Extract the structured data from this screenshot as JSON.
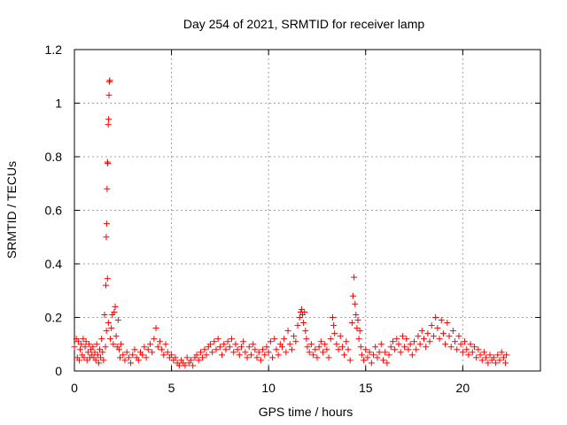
{
  "chart_data": {
    "type": "scatter",
    "title": "Day 254 of 2021, SRMTID for receiver lamp",
    "xlabel": "GPS time / hours",
    "ylabel": "SRMTID / TECUs",
    "xlim": [
      0,
      24
    ],
    "ylim": [
      0,
      1.2
    ],
    "xticks": [
      0,
      5,
      10,
      15,
      20
    ],
    "xtick_labels": [
      "0",
      "5",
      "10",
      "15",
      "20"
    ],
    "yticks": [
      0,
      0.2,
      0.4,
      0.6,
      0.8,
      1.0,
      1.2
    ],
    "ytick_labels": [
      "0",
      "0.2",
      "0.4",
      "0.6",
      "0.8",
      "1",
      "1.2"
    ],
    "grid": true,
    "marker": "+",
    "color": "#ff0000",
    "series": [
      {
        "name": "SRMTID",
        "points": [
          [
            0.0,
            0.09
          ],
          [
            0.1,
            0.12
          ],
          [
            0.15,
            0.05
          ],
          [
            0.2,
            0.11
          ],
          [
            0.25,
            0.04
          ],
          [
            0.3,
            0.08
          ],
          [
            0.35,
            0.1
          ],
          [
            0.4,
            0.06
          ],
          [
            0.45,
            0.12
          ],
          [
            0.5,
            0.05
          ],
          [
            0.55,
            0.09
          ],
          [
            0.6,
            0.11
          ],
          [
            0.65,
            0.04
          ],
          [
            0.7,
            0.07
          ],
          [
            0.75,
            0.1
          ],
          [
            0.8,
            0.05
          ],
          [
            0.85,
            0.08
          ],
          [
            0.9,
            0.06
          ],
          [
            0.95,
            0.09
          ],
          [
            1.0,
            0.05
          ],
          [
            1.05,
            0.07
          ],
          [
            1.1,
            0.04
          ],
          [
            1.15,
            0.1
          ],
          [
            1.2,
            0.06
          ],
          [
            1.25,
            0.03
          ],
          [
            1.3,
            0.08
          ],
          [
            1.35,
            0.05
          ],
          [
            1.4,
            0.12
          ],
          [
            1.45,
            0.07
          ],
          [
            1.5,
            0.04
          ],
          [
            1.55,
            0.21
          ],
          [
            1.6,
            0.09
          ],
          [
            1.62,
            0.32
          ],
          [
            1.64,
            0.5
          ],
          [
            1.66,
            0.55
          ],
          [
            1.68,
            0.68
          ],
          [
            1.7,
            0.78
          ],
          [
            1.72,
            0.775
          ],
          [
            1.74,
            0.92
          ],
          [
            1.76,
            0.94
          ],
          [
            1.78,
            1.03
          ],
          [
            1.8,
            1.08
          ],
          [
            1.82,
            1.085
          ],
          [
            1.7,
            0.345
          ],
          [
            1.65,
            0.15
          ],
          [
            1.75,
            0.18
          ],
          [
            1.85,
            0.12
          ],
          [
            1.9,
            0.16
          ],
          [
            1.95,
            0.21
          ],
          [
            2.0,
            0.1
          ],
          [
            2.05,
            0.22
          ],
          [
            2.1,
            0.24
          ],
          [
            2.15,
            0.13
          ],
          [
            2.2,
            0.09
          ],
          [
            2.25,
            0.19
          ],
          [
            2.3,
            0.08
          ],
          [
            2.35,
            0.05
          ],
          [
            2.4,
            0.1
          ],
          [
            2.5,
            0.06
          ],
          [
            2.6,
            0.04
          ],
          [
            2.7,
            0.07
          ],
          [
            2.8,
            0.05
          ],
          [
            2.9,
            0.03
          ],
          [
            3.0,
            0.06
          ],
          [
            3.1,
            0.08
          ],
          [
            3.2,
            0.05
          ],
          [
            3.3,
            0.04
          ],
          [
            3.4,
            0.07
          ],
          [
            3.5,
            0.06
          ],
          [
            3.6,
            0.09
          ],
          [
            3.7,
            0.05
          ],
          [
            3.8,
            0.08
          ],
          [
            3.9,
            0.1
          ],
          [
            4.0,
            0.07
          ],
          [
            4.1,
            0.12
          ],
          [
            4.2,
            0.16
          ],
          [
            4.3,
            0.09
          ],
          [
            4.4,
            0.11
          ],
          [
            4.5,
            0.08
          ],
          [
            4.6,
            0.06
          ],
          [
            4.7,
            0.1
          ],
          [
            4.8,
            0.07
          ],
          [
            4.9,
            0.05
          ],
          [
            5.0,
            0.06
          ],
          [
            5.1,
            0.04
          ],
          [
            5.2,
            0.05
          ],
          [
            5.3,
            0.03
          ],
          [
            5.4,
            0.02
          ],
          [
            5.5,
            0.04
          ],
          [
            5.6,
            0.03
          ],
          [
            5.7,
            0.02
          ],
          [
            5.8,
            0.05
          ],
          [
            5.9,
            0.03
          ],
          [
            6.0,
            0.04
          ],
          [
            6.1,
            0.02
          ],
          [
            6.2,
            0.05
          ],
          [
            6.3,
            0.06
          ],
          [
            6.4,
            0.04
          ],
          [
            6.5,
            0.07
          ],
          [
            6.6,
            0.05
          ],
          [
            6.7,
            0.08
          ],
          [
            6.8,
            0.06
          ],
          [
            6.9,
            0.09
          ],
          [
            7.0,
            0.1
          ],
          [
            7.1,
            0.07
          ],
          [
            7.2,
            0.11
          ],
          [
            7.3,
            0.08
          ],
          [
            7.4,
            0.12
          ],
          [
            7.5,
            0.09
          ],
          [
            7.6,
            0.06
          ],
          [
            7.7,
            0.1
          ],
          [
            7.8,
            0.08
          ],
          [
            7.9,
            0.11
          ],
          [
            8.0,
            0.09
          ],
          [
            8.1,
            0.12
          ],
          [
            8.2,
            0.07
          ],
          [
            8.3,
            0.1
          ],
          [
            8.4,
            0.08
          ],
          [
            8.5,
            0.06
          ],
          [
            8.6,
            0.09
          ],
          [
            8.7,
            0.11
          ],
          [
            8.8,
            0.07
          ],
          [
            8.9,
            0.05
          ],
          [
            9.0,
            0.09
          ],
          [
            9.1,
            0.06
          ],
          [
            9.2,
            0.1
          ],
          [
            9.3,
            0.08
          ],
          [
            9.4,
            0.05
          ],
          [
            9.5,
            0.07
          ],
          [
            9.6,
            0.04
          ],
          [
            9.7,
            0.08
          ],
          [
            9.8,
            0.06
          ],
          [
            9.9,
            0.09
          ],
          [
            10.0,
            0.07
          ],
          [
            10.1,
            0.11
          ],
          [
            10.2,
            0.05
          ],
          [
            10.3,
            0.12
          ],
          [
            10.4,
            0.08
          ],
          [
            10.5,
            0.06
          ],
          [
            10.6,
            0.1
          ],
          [
            10.7,
            0.09
          ],
          [
            10.8,
            0.12
          ],
          [
            10.9,
            0.07
          ],
          [
            11.0,
            0.15
          ],
          [
            11.1,
            0.1
          ],
          [
            11.2,
            0.08
          ],
          [
            11.3,
            0.13
          ],
          [
            11.4,
            0.11
          ],
          [
            11.5,
            0.17
          ],
          [
            11.6,
            0.2
          ],
          [
            11.65,
            0.22
          ],
          [
            11.7,
            0.23
          ],
          [
            11.75,
            0.21
          ],
          [
            11.8,
            0.18
          ],
          [
            11.85,
            0.22
          ],
          [
            11.9,
            0.15
          ],
          [
            11.95,
            0.12
          ],
          [
            12.0,
            0.09
          ],
          [
            12.1,
            0.07
          ],
          [
            12.2,
            0.1
          ],
          [
            12.3,
            0.06
          ],
          [
            12.4,
            0.08
          ],
          [
            12.5,
            0.05
          ],
          [
            12.6,
            0.09
          ],
          [
            12.7,
            0.11
          ],
          [
            12.8,
            0.07
          ],
          [
            12.9,
            0.1
          ],
          [
            13.0,
            0.08
          ],
          [
            13.1,
            0.05
          ],
          [
            13.2,
            0.12
          ],
          [
            13.3,
            0.2
          ],
          [
            13.35,
            0.17
          ],
          [
            13.4,
            0.14
          ],
          [
            13.5,
            0.1
          ],
          [
            13.6,
            0.08
          ],
          [
            13.7,
            0.13
          ],
          [
            13.8,
            0.09
          ],
          [
            13.9,
            0.06
          ],
          [
            14.0,
            0.11
          ],
          [
            14.1,
            0.08
          ],
          [
            14.2,
            0.04
          ],
          [
            14.3,
            0.18
          ],
          [
            14.35,
            0.28
          ],
          [
            14.4,
            0.35
          ],
          [
            14.45,
            0.25
          ],
          [
            14.5,
            0.21
          ],
          [
            14.55,
            0.16
          ],
          [
            14.6,
            0.19
          ],
          [
            14.65,
            0.12
          ],
          [
            14.7,
            0.15
          ],
          [
            14.75,
            0.09
          ],
          [
            14.8,
            0.06
          ],
          [
            14.9,
            0.04
          ],
          [
            15.0,
            0.08
          ],
          [
            15.1,
            0.05
          ],
          [
            15.2,
            0.07
          ],
          [
            15.3,
            0.03
          ],
          [
            15.4,
            0.06
          ],
          [
            15.5,
            0.09
          ],
          [
            15.6,
            0.05
          ],
          [
            15.7,
            0.07
          ],
          [
            15.8,
            0.1
          ],
          [
            15.9,
            0.04
          ],
          [
            16.0,
            0.07
          ],
          [
            16.1,
            0.03
          ],
          [
            16.2,
            0.06
          ],
          [
            16.3,
            0.09
          ],
          [
            16.4,
            0.11
          ],
          [
            16.5,
            0.08
          ],
          [
            16.6,
            0.12
          ],
          [
            16.7,
            0.1
          ],
          [
            16.8,
            0.07
          ],
          [
            16.9,
            0.13
          ],
          [
            17.0,
            0.09
          ],
          [
            17.1,
            0.12
          ],
          [
            17.2,
            0.08
          ],
          [
            17.3,
            0.1
          ],
          [
            17.4,
            0.06
          ],
          [
            17.5,
            0.11
          ],
          [
            17.6,
            0.08
          ],
          [
            17.7,
            0.13
          ],
          [
            17.8,
            0.1
          ],
          [
            17.9,
            0.15
          ],
          [
            18.0,
            0.12
          ],
          [
            18.1,
            0.09
          ],
          [
            18.2,
            0.14
          ],
          [
            18.3,
            0.11
          ],
          [
            18.4,
            0.17
          ],
          [
            18.5,
            0.13
          ],
          [
            18.6,
            0.2
          ],
          [
            18.7,
            0.16
          ],
          [
            18.8,
            0.12
          ],
          [
            18.9,
            0.19
          ],
          [
            19.0,
            0.14
          ],
          [
            19.1,
            0.1
          ],
          [
            19.2,
            0.18
          ],
          [
            19.3,
            0.13
          ],
          [
            19.4,
            0.09
          ],
          [
            19.5,
            0.15
          ],
          [
            19.6,
            0.11
          ],
          [
            19.7,
            0.08
          ],
          [
            19.8,
            0.13
          ],
          [
            19.9,
            0.1
          ],
          [
            20.0,
            0.07
          ],
          [
            20.1,
            0.11
          ],
          [
            20.2,
            0.08
          ],
          [
            20.3,
            0.06
          ],
          [
            20.4,
            0.1
          ],
          [
            20.5,
            0.07
          ],
          [
            20.6,
            0.09
          ],
          [
            20.7,
            0.05
          ],
          [
            20.8,
            0.08
          ],
          [
            20.9,
            0.06
          ],
          [
            21.0,
            0.04
          ],
          [
            21.1,
            0.07
          ],
          [
            21.2,
            0.05
          ],
          [
            21.3,
            0.03
          ],
          [
            21.4,
            0.06
          ],
          [
            21.5,
            0.04
          ],
          [
            21.6,
            0.05
          ],
          [
            21.7,
            0.03
          ],
          [
            21.8,
            0.06
          ],
          [
            21.9,
            0.04
          ],
          [
            22.0,
            0.07
          ],
          [
            22.1,
            0.05
          ],
          [
            22.2,
            0.03
          ],
          [
            22.25,
            0.06
          ]
        ]
      }
    ]
  }
}
